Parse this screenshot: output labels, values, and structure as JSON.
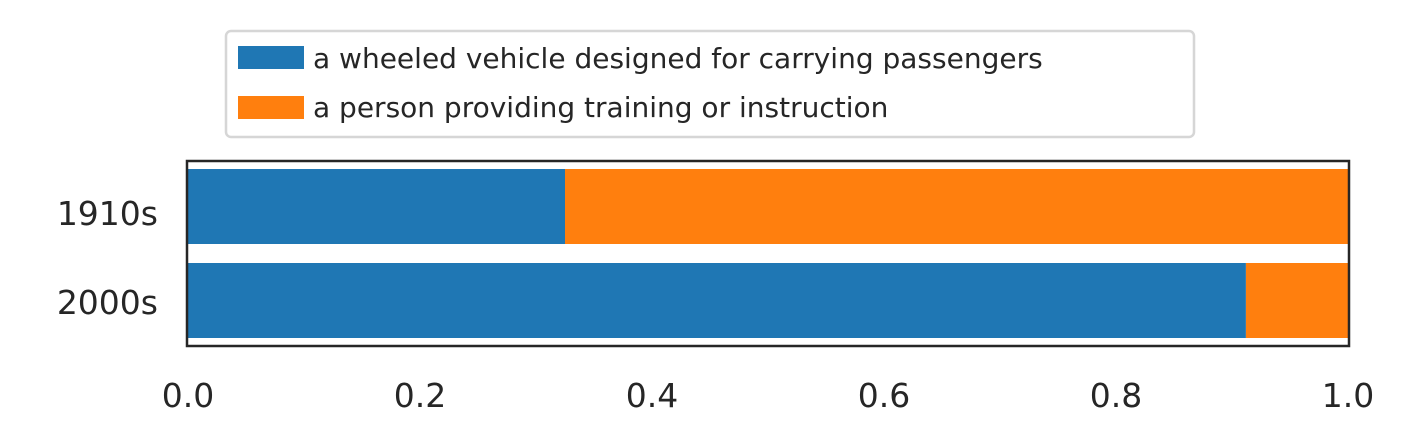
{
  "chart_data": {
    "type": "bar",
    "orientation": "horizontal",
    "stacked": true,
    "categories": [
      "1910s",
      "2000s"
    ],
    "series": [
      {
        "name": "a wheeled vehicle designed for carrying passengers",
        "color": "#1f77b4",
        "values": [
          0.325,
          0.912
        ]
      },
      {
        "name": "a person providing training or instruction",
        "color": "#ff7f0e",
        "values": [
          0.675,
          0.088
        ]
      }
    ],
    "xlim": [
      0.0,
      1.0
    ],
    "xticks": [
      "0.0",
      "0.2",
      "0.4",
      "0.6",
      "0.8",
      "1.0"
    ],
    "xtick_values": [
      0.0,
      0.2,
      0.4,
      0.6,
      0.8,
      1.0
    ],
    "title": "",
    "xlabel": "",
    "ylabel": "",
    "grid": false,
    "legend_position": "top-center, above the plot"
  }
}
